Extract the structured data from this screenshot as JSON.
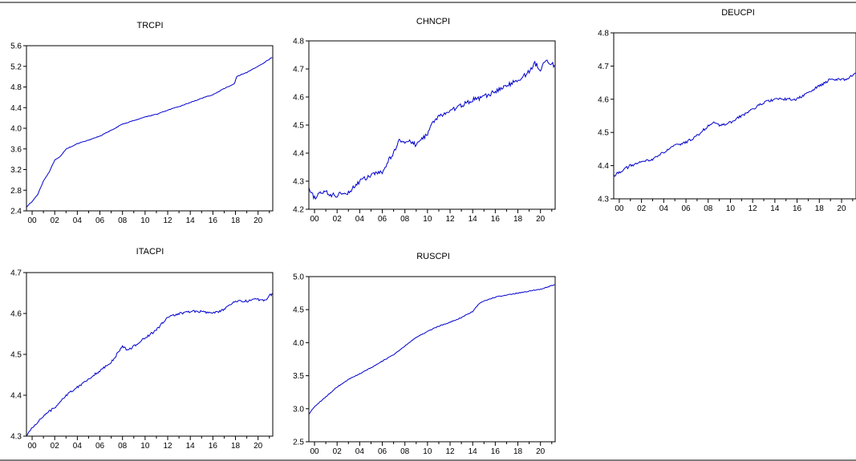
{
  "colors": {
    "line": "#0000cc",
    "axis": "#000000",
    "background": "#ffffff"
  },
  "chart_data": [
    {
      "type": "line",
      "title": "TRCPI",
      "xlabel": "",
      "ylabel": "",
      "xlim": [
        1999.5,
        2021.3
      ],
      "ylim": [
        2.4,
        5.6
      ],
      "x_ticks": [
        2000,
        2002,
        2004,
        2006,
        2008,
        2010,
        2012,
        2014,
        2016,
        2018,
        2020
      ],
      "x_tick_labels": [
        "00",
        "02",
        "04",
        "06",
        "08",
        "10",
        "12",
        "14",
        "16",
        "18",
        "20"
      ],
      "y_ticks": [
        2.4,
        2.8,
        3.2,
        3.6,
        4.0,
        4.4,
        4.8,
        5.2,
        5.6
      ],
      "y_tick_labels": [
        "2.4",
        "2.8",
        "3.2",
        "3.6",
        "4.0",
        "4.4",
        "4.8",
        "5.2",
        "5.6"
      ],
      "grid": false,
      "noise": 0.006,
      "x": [
        1999.5,
        2000,
        2000.5,
        2001,
        2001.5,
        2002,
        2002.5,
        2003,
        2003.5,
        2004,
        2005,
        2006,
        2007,
        2008,
        2009,
        2010,
        2011,
        2012,
        2013,
        2014,
        2015,
        2016,
        2017,
        2017.9,
        2018.1,
        2019,
        2020,
        2021.3
      ],
      "values": [
        2.48,
        2.58,
        2.72,
        2.98,
        3.15,
        3.38,
        3.45,
        3.6,
        3.65,
        3.7,
        3.77,
        3.85,
        3.96,
        4.08,
        4.15,
        4.22,
        4.27,
        4.35,
        4.42,
        4.5,
        4.58,
        4.65,
        4.77,
        4.86,
        5.0,
        5.08,
        5.2,
        5.38
      ]
    },
    {
      "type": "line",
      "title": "CHNCPI",
      "xlabel": "",
      "ylabel": "",
      "xlim": [
        1999.5,
        2021.3
      ],
      "ylim": [
        4.2,
        4.8
      ],
      "x_ticks": [
        2000,
        2002,
        2004,
        2006,
        2008,
        2010,
        2012,
        2014,
        2016,
        2018,
        2020
      ],
      "x_tick_labels": [
        "00",
        "02",
        "04",
        "06",
        "08",
        "10",
        "12",
        "14",
        "16",
        "18",
        "20"
      ],
      "y_ticks": [
        4.2,
        4.3,
        4.4,
        4.5,
        4.6,
        4.7,
        4.8
      ],
      "y_tick_labels": [
        "4.2",
        "4.3",
        "4.4",
        "4.5",
        "4.6",
        "4.7",
        "4.8"
      ],
      "grid": false,
      "noise": 0.008,
      "x": [
        1999.5,
        2000,
        2000.5,
        2001,
        2001.5,
        2002,
        2002.5,
        2003,
        2003.5,
        2004,
        2004.5,
        2005,
        2005.5,
        2006,
        2006.5,
        2007,
        2007.5,
        2008,
        2008.5,
        2009,
        2009.5,
        2010,
        2010.5,
        2011,
        2012,
        2013,
        2014,
        2015,
        2016,
        2017,
        2018,
        2019,
        2019.5,
        2020,
        2020.5,
        2021.3
      ],
      "values": [
        4.27,
        4.24,
        4.26,
        4.26,
        4.25,
        4.25,
        4.26,
        4.26,
        4.28,
        4.3,
        4.31,
        4.32,
        4.33,
        4.33,
        4.37,
        4.4,
        4.45,
        4.44,
        4.44,
        4.43,
        4.45,
        4.47,
        4.51,
        4.53,
        4.55,
        4.57,
        4.59,
        4.6,
        4.62,
        4.64,
        4.66,
        4.69,
        4.72,
        4.7,
        4.73,
        4.71
      ]
    },
    {
      "type": "line",
      "title": "DEUCPI",
      "xlabel": "",
      "ylabel": "",
      "xlim": [
        1999.5,
        2021.3
      ],
      "ylim": [
        4.3,
        4.8
      ],
      "x_ticks": [
        2000,
        2002,
        2004,
        2006,
        2008,
        2010,
        2012,
        2014,
        2016,
        2018,
        2020
      ],
      "x_tick_labels": [
        "00",
        "02",
        "04",
        "06",
        "08",
        "10",
        "12",
        "14",
        "16",
        "18",
        "20"
      ],
      "y_ticks": [
        4.3,
        4.4,
        4.5,
        4.6,
        4.7,
        4.8
      ],
      "y_tick_labels": [
        "4.3",
        "4.4",
        "4.5",
        "4.6",
        "4.7",
        "4.8"
      ],
      "grid": false,
      "noise": 0.004,
      "x": [
        1999.5,
        2000,
        2001,
        2002,
        2003,
        2004,
        2005,
        2006,
        2007,
        2008,
        2008.5,
        2009,
        2010,
        2011,
        2012,
        2013,
        2014,
        2014.5,
        2015,
        2016,
        2017,
        2018,
        2019,
        2020,
        2020.5,
        2021.3
      ],
      "values": [
        4.37,
        4.38,
        4.4,
        4.41,
        4.42,
        4.44,
        4.46,
        4.47,
        4.49,
        4.52,
        4.53,
        4.52,
        4.53,
        4.55,
        4.57,
        4.59,
        4.6,
        4.6,
        4.6,
        4.6,
        4.62,
        4.64,
        4.66,
        4.66,
        4.66,
        4.68
      ]
    },
    {
      "type": "line",
      "title": "ITACPI",
      "xlabel": "",
      "ylabel": "",
      "xlim": [
        1999.5,
        2021.3
      ],
      "ylim": [
        4.3,
        4.7
      ],
      "x_ticks": [
        2000,
        2002,
        2004,
        2006,
        2008,
        2010,
        2012,
        2014,
        2016,
        2018,
        2020
      ],
      "x_tick_labels": [
        "00",
        "02",
        "04",
        "06",
        "08",
        "10",
        "12",
        "14",
        "16",
        "18",
        "20"
      ],
      "y_ticks": [
        4.3,
        4.4,
        4.5,
        4.6,
        4.7
      ],
      "y_tick_labels": [
        "4.3",
        "4.4",
        "4.5",
        "4.6",
        "4.7"
      ],
      "grid": false,
      "noise": 0.003,
      "x": [
        1999.5,
        2000,
        2001,
        2002,
        2003,
        2004,
        2005,
        2006,
        2007,
        2008,
        2008.5,
        2009,
        2010,
        2011,
        2012,
        2013,
        2014,
        2015,
        2016,
        2017,
        2018,
        2019,
        2020,
        2020.5,
        2021.3
      ],
      "values": [
        4.3,
        4.32,
        4.35,
        4.37,
        4.4,
        4.42,
        4.44,
        4.46,
        4.48,
        4.52,
        4.51,
        4.52,
        4.54,
        4.56,
        4.59,
        4.6,
        4.605,
        4.605,
        4.6,
        4.61,
        4.63,
        4.63,
        4.635,
        4.63,
        4.65
      ]
    },
    {
      "type": "line",
      "title": "RUSCPI",
      "xlabel": "",
      "ylabel": "",
      "xlim": [
        1999.5,
        2021.3
      ],
      "ylim": [
        2.5,
        5.0
      ],
      "x_ticks": [
        2000,
        2002,
        2004,
        2006,
        2008,
        2010,
        2012,
        2014,
        2016,
        2018,
        2020
      ],
      "x_tick_labels": [
        "00",
        "02",
        "04",
        "06",
        "08",
        "10",
        "12",
        "14",
        "16",
        "18",
        "20"
      ],
      "y_ticks": [
        2.5,
        3.0,
        3.5,
        4.0,
        4.5,
        5.0
      ],
      "y_tick_labels": [
        "2.5",
        "3.0",
        "3.5",
        "4.0",
        "4.5",
        "5.0"
      ],
      "grid": false,
      "noise": 0.006,
      "x": [
        1999.5,
        2000,
        2001,
        2002,
        2003,
        2004,
        2005,
        2006,
        2007,
        2008,
        2009,
        2010,
        2011,
        2012,
        2013,
        2014,
        2014.5,
        2015,
        2016,
        2017,
        2018,
        2019,
        2020,
        2021.3
      ],
      "values": [
        2.92,
        3.03,
        3.18,
        3.33,
        3.44,
        3.53,
        3.62,
        3.72,
        3.82,
        3.95,
        4.08,
        4.17,
        4.25,
        4.31,
        4.38,
        4.47,
        4.58,
        4.63,
        4.69,
        4.72,
        4.75,
        4.78,
        4.81,
        4.88
      ]
    }
  ]
}
